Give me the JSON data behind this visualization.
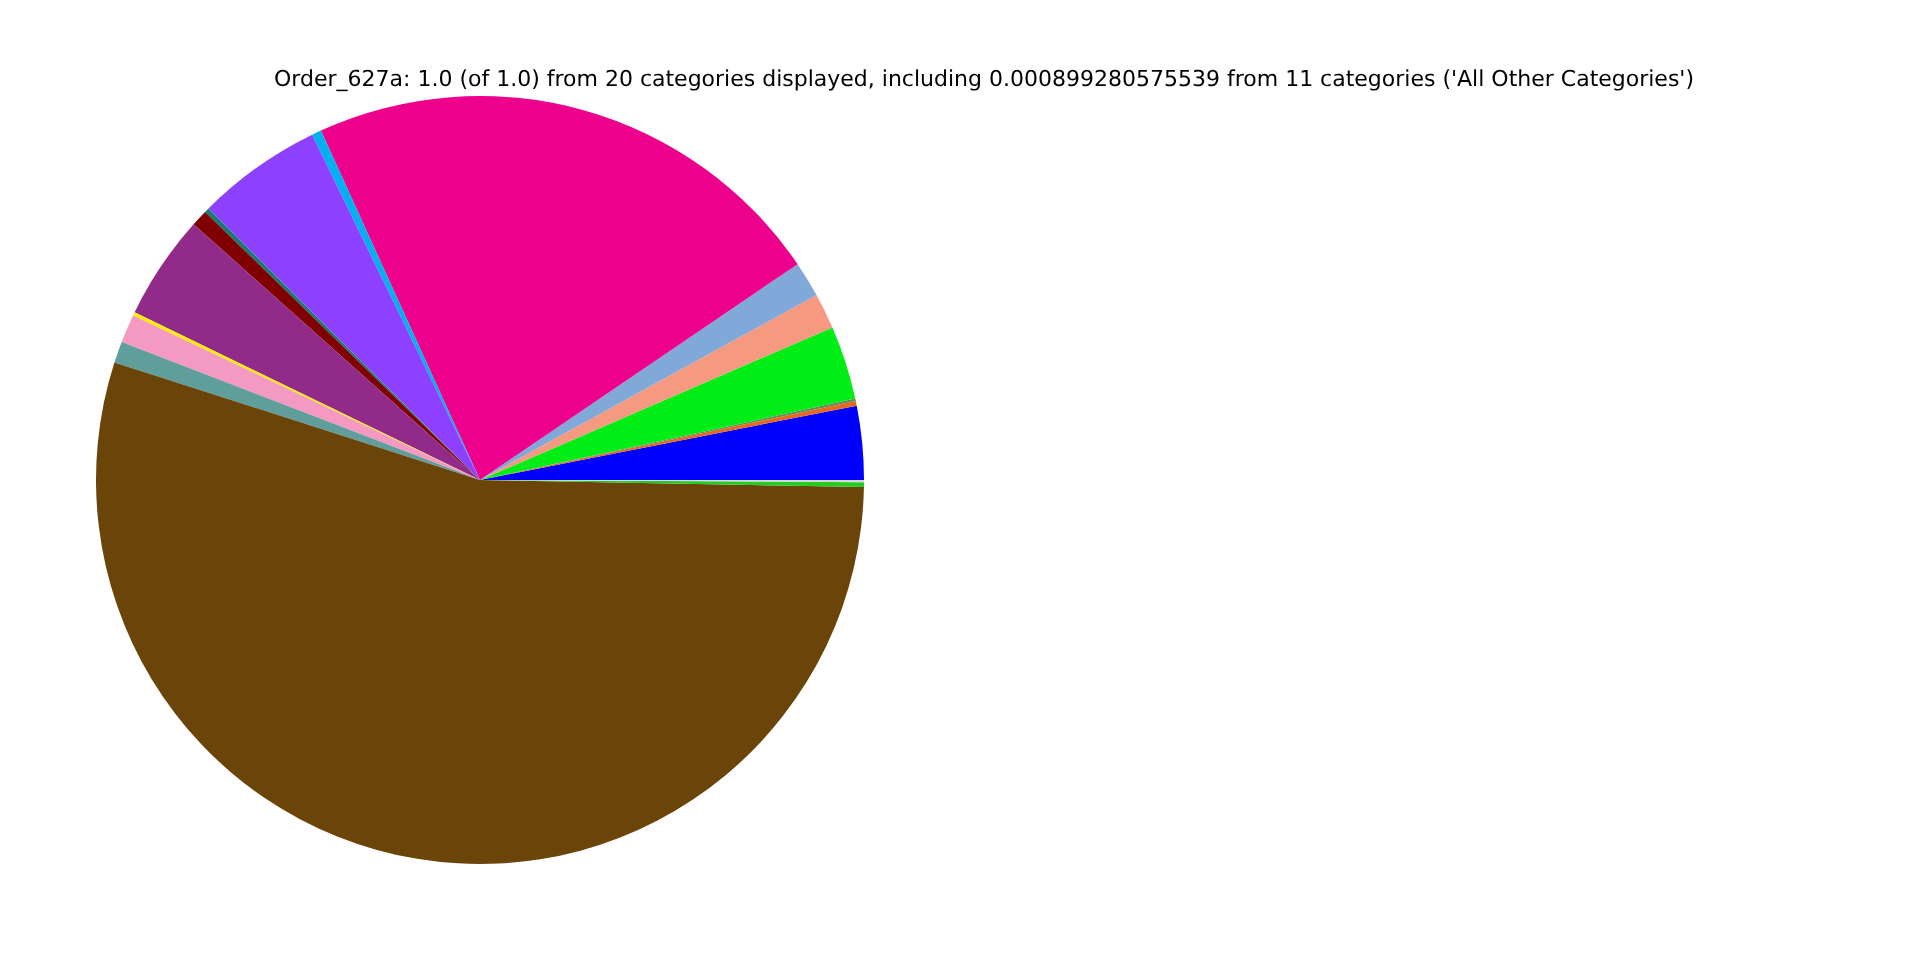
{
  "chart_data": {
    "type": "pie",
    "title": "Order_627a: 1.0 (of 1.0) from 20 categories displayed, including 0.000899280575539 from 11 categories ('All Other Categories')",
    "categories": [
      null,
      null,
      null,
      null,
      null,
      null,
      null,
      null,
      null,
      null,
      null,
      null,
      null,
      null,
      null,
      null,
      null,
      null
    ],
    "values": [
      3.1,
      0.2,
      0.1,
      3.1,
      1.5,
      1.5,
      22.3,
      0.4,
      5.3,
      0.2,
      0.7,
      4.4,
      0.15,
      1.2,
      0.9,
      54.66,
      0.2,
      0.09
    ],
    "colors": [
      "#0000ff",
      "#e8681c",
      "#6a8a5a",
      "#00ee16",
      "#f59a80",
      "#80a8d8",
      "#ec008c",
      "#00b0f0",
      "#8e40ff",
      "#1a7a7a",
      "#800000",
      "#922a8a",
      "#ffee00",
      "#f49ac2",
      "#5f9e9a",
      "#6b4409",
      "#22cc22",
      "#d8d8d8"
    ]
  }
}
